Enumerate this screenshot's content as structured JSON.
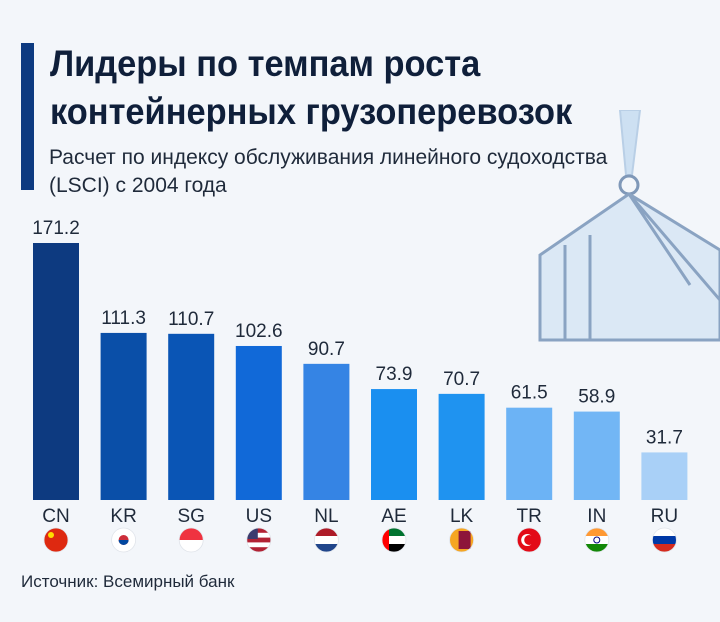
{
  "chart_data": {
    "type": "bar",
    "title": "Лидеры по темпам роста контейнерных грузоперевозок",
    "subtitle": "Расчет по индексу обслуживания линейного судоходства (LSCI) с 2004 года",
    "categories": [
      "CN",
      "KR",
      "SG",
      "US",
      "NL",
      "AE",
      "LK",
      "TR",
      "IN",
      "RU"
    ],
    "values": [
      171.2,
      111.3,
      110.7,
      102.6,
      90.7,
      73.9,
      70.7,
      61.5,
      58.9,
      31.7
    ],
    "colors": [
      "#0d3a80",
      "#0a4fa8",
      "#0a55b5",
      "#1169d8",
      "#3584e4",
      "#1a8ff0",
      "#1f93f0",
      "#6cb3f5",
      "#72b6f5",
      "#a9d0f7"
    ],
    "ylim": [
      0,
      171.2
    ],
    "grid": false,
    "legend": "none",
    "source": "Источник: Всемирный банк",
    "icons": [
      "flag-china",
      "flag-south-korea",
      "flag-singapore",
      "flag-usa",
      "flag-netherlands",
      "flag-uae",
      "flag-sri-lanka",
      "flag-turkey",
      "flag-india",
      "flag-russia"
    ]
  }
}
